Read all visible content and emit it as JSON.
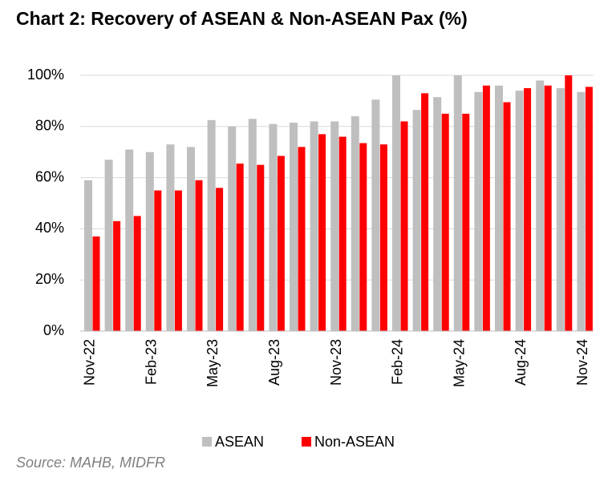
{
  "chart_data": {
    "type": "bar",
    "title": "Chart 2: Recovery of ASEAN & Non-ASEAN Pax (%)",
    "source": "Source: MAHB, MIDFR",
    "categories": [
      "Nov-22",
      null,
      null,
      "Feb-23",
      null,
      null,
      "May-23",
      null,
      null,
      "Aug-23",
      null,
      null,
      "Nov-23",
      null,
      null,
      "Feb-24",
      null,
      null,
      "May-24",
      null,
      null,
      "Aug-24",
      null,
      null,
      "Nov-24"
    ],
    "series": [
      {
        "name": "ASEAN",
        "color": "#bfbfbf",
        "values": [
          59,
          67,
          71,
          70,
          73,
          72,
          82.5,
          80,
          83,
          81,
          81.5,
          82,
          82,
          84,
          90.5,
          100,
          86.5,
          91.5,
          100,
          93.5,
          96,
          94,
          98,
          95,
          93.5
        ]
      },
      {
        "name": "Non-ASEAN",
        "color": "#ff0000",
        "values": [
          37,
          43,
          45,
          55,
          55,
          59,
          56,
          65.5,
          65,
          68.5,
          72,
          77,
          76,
          73.5,
          73,
          82,
          93,
          85,
          85,
          96,
          89.5,
          95,
          96,
          100,
          95.5
        ]
      }
    ],
    "ylim": [
      0,
      100
    ],
    "yticks": [
      {
        "value": 0,
        "label": "0%"
      },
      {
        "value": 20,
        "label": "20%"
      },
      {
        "value": 40,
        "label": "40%"
      },
      {
        "value": 60,
        "label": "60%"
      },
      {
        "value": 80,
        "label": "80%"
      },
      {
        "value": 100,
        "label": "100%"
      }
    ],
    "grid": true,
    "legend": "bottom"
  }
}
